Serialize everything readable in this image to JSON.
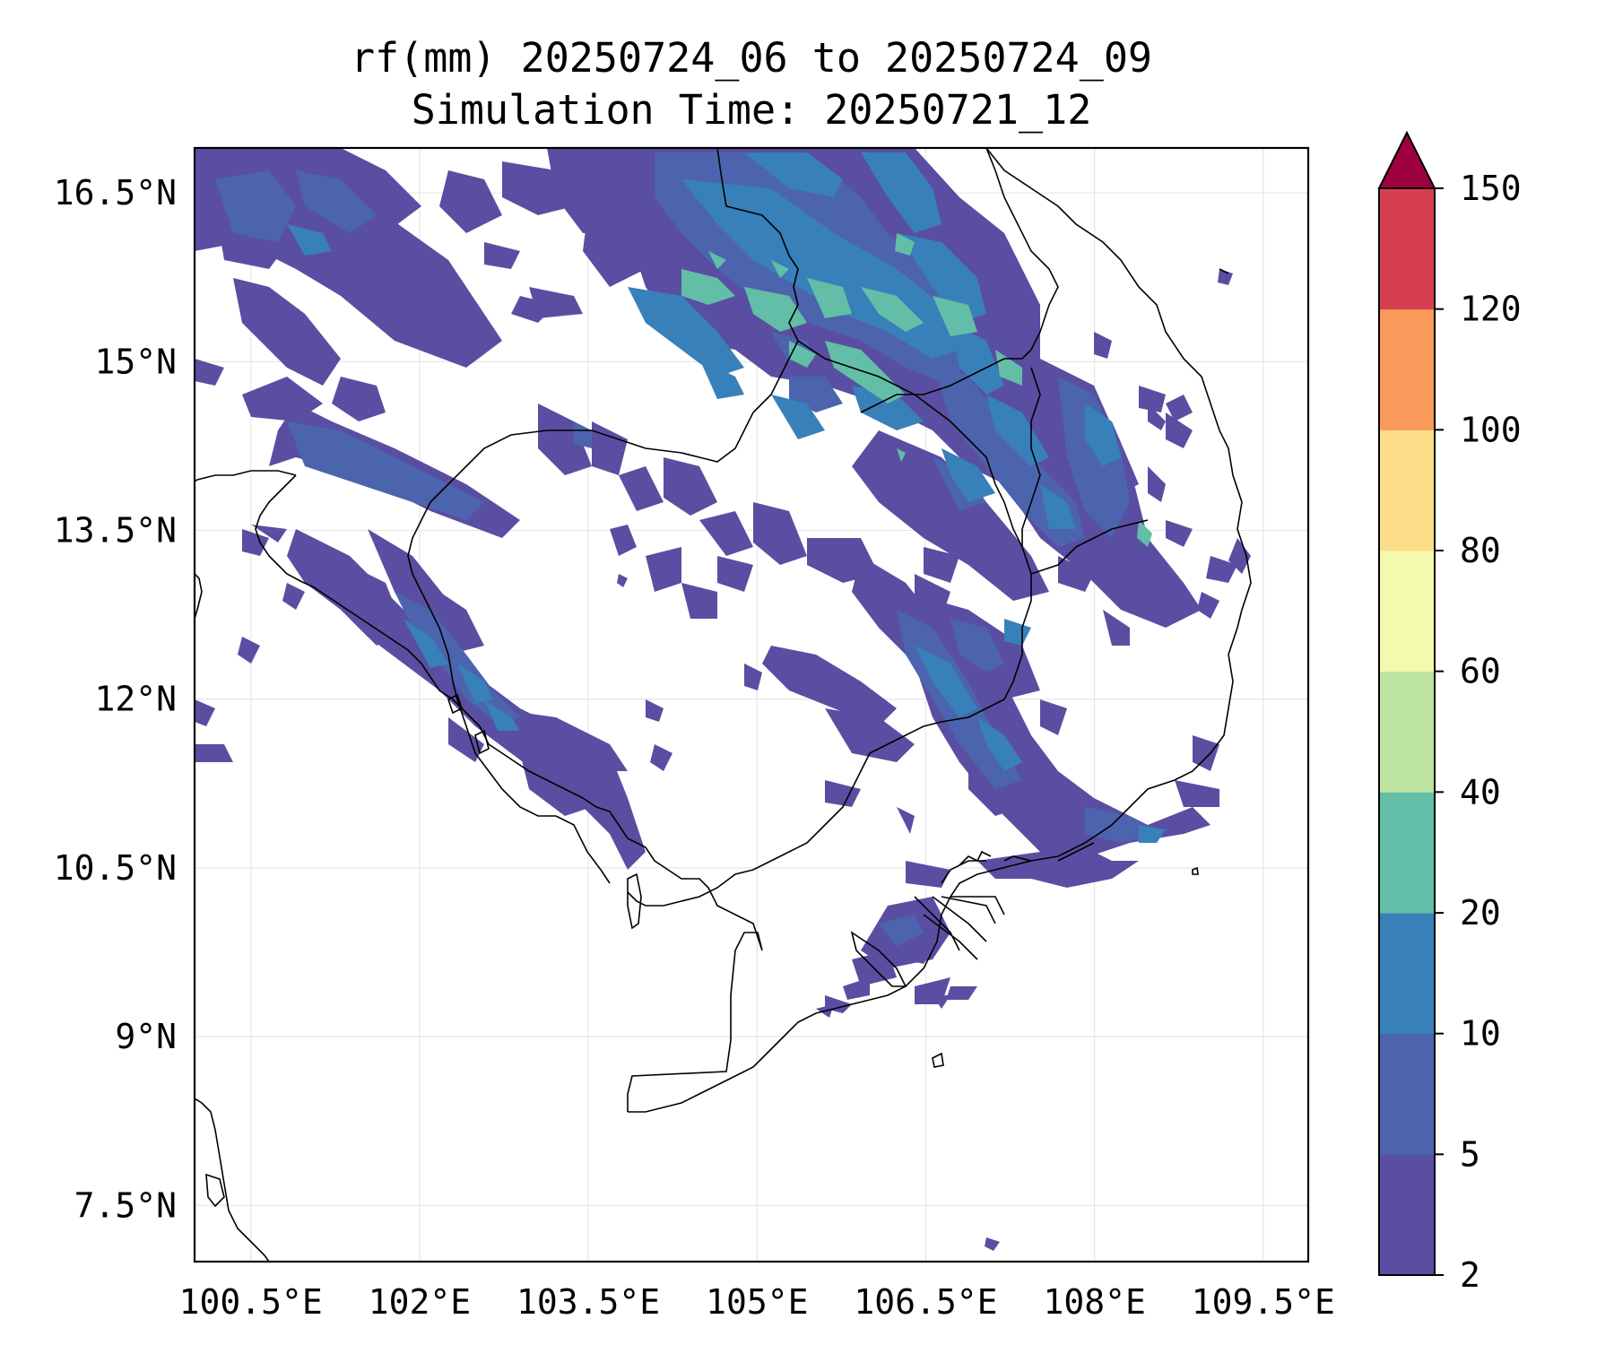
{
  "title": {
    "line1": "rf(mm) 20250724_06 to 20250724_09",
    "line2": "Simulation Time: 20250721_12"
  },
  "map": {
    "lon_range": [
      100.0,
      109.9
    ],
    "lat_range": [
      7.0,
      16.9
    ],
    "lon_ticks": [
      100.5,
      102,
      103.5,
      105,
      106.5,
      108,
      109.5
    ],
    "lon_labels": [
      "100.5°E",
      "102°E",
      "103.5°E",
      "105°E",
      "106.5°E",
      "108°E",
      "109.5°E"
    ],
    "lat_ticks": [
      16.5,
      15,
      13.5,
      12,
      10.5,
      9,
      7.5
    ],
    "lat_labels": [
      "16.5°N",
      "15°N",
      "13.5°N",
      "12°N",
      "10.5°N",
      "9°N",
      "7.5°N"
    ],
    "grid": true
  },
  "colorbar": {
    "levels": [
      2,
      5,
      10,
      20,
      40,
      60,
      80,
      100,
      120,
      150
    ],
    "labels": [
      "2",
      "5",
      "10",
      "20",
      "40",
      "60",
      "80",
      "100",
      "120",
      "150"
    ],
    "colors": [
      "#5a4ea2",
      "#4b64ad",
      "#3880b9",
      "#62bea6",
      "#bde4a0",
      "#f3faad",
      "#fcdd8a",
      "#f99b5b",
      "#d63f4f"
    ],
    "extend_color": "#9e0142",
    "extend": "max"
  },
  "rain_colors": {
    "c2": "#5a4ea2",
    "c5": "#4b64ad",
    "c10": "#3880b9",
    "c20": "#62bea6"
  }
}
